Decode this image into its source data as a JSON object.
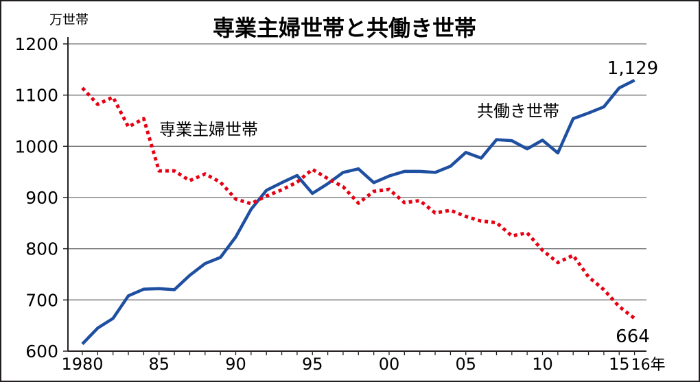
{
  "chart_data": {
    "type": "line",
    "title": "専業主婦世帯と共働き世帯",
    "ylabel": "万世帯",
    "xlabel": "年",
    "ylim": [
      600,
      1200
    ],
    "yticks": [
      600,
      700,
      800,
      900,
      1000,
      1100,
      1200
    ],
    "xticks": [
      {
        "year": 1980,
        "label": "1980"
      },
      {
        "year": 1985,
        "label": "85"
      },
      {
        "year": 1990,
        "label": "90"
      },
      {
        "year": 1995,
        "label": "95"
      },
      {
        "year": 2000,
        "label": "00"
      },
      {
        "year": 2005,
        "label": "05"
      },
      {
        "year": 2010,
        "label": "10"
      },
      {
        "year": 2015,
        "label": "15"
      },
      {
        "year": 2016,
        "label": "16年"
      }
    ],
    "grid": true,
    "x": [
      1980,
      1981,
      1982,
      1983,
      1984,
      1985,
      1986,
      1987,
      1988,
      1989,
      1990,
      1991,
      1992,
      1993,
      1994,
      1995,
      1996,
      1997,
      1998,
      1999,
      2000,
      2001,
      2002,
      2003,
      2004,
      2005,
      2006,
      2007,
      2008,
      2009,
      2010,
      2011,
      2012,
      2013,
      2014,
      2015,
      2016
    ],
    "series": [
      {
        "name": "共働き世帯",
        "color": "#1f4fa0",
        "style": "solid",
        "end_label": "1,129",
        "values": [
          614,
          645,
          664,
          708,
          721,
          722,
          720,
          748,
          771,
          783,
          823,
          877,
          914,
          929,
          943,
          908,
          927,
          949,
          956,
          929,
          942,
          951,
          951,
          949,
          961,
          988,
          977,
          1013,
          1011,
          995,
          1012,
          987,
          1054,
          1065,
          1077,
          1114,
          1129
        ]
      },
      {
        "name": "専業主婦世帯",
        "color": "#e60012",
        "style": "dotted",
        "end_label": "664",
        "values": [
          1114,
          1082,
          1096,
          1038,
          1054,
          952,
          952,
          933,
          946,
          930,
          897,
          888,
          903,
          915,
          930,
          955,
          937,
          921,
          889,
          912,
          916,
          890,
          894,
          870,
          875,
          863,
          854,
          851,
          825,
          831,
          797,
          773,
          787,
          745,
          720,
          687,
          664
        ]
      }
    ]
  }
}
